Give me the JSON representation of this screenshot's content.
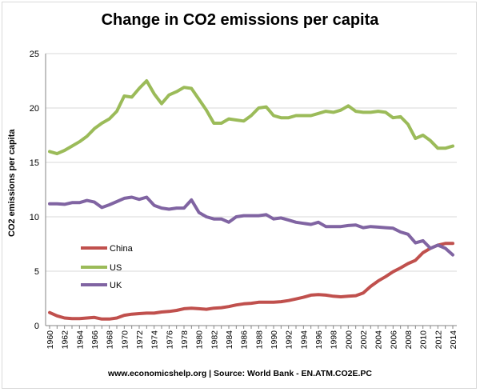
{
  "colors": {
    "China": "#c0504d",
    "US": "#9bbb59",
    "UK": "#8064a2",
    "grid": "#d9d9d9",
    "axis": "#868686"
  },
  "chart_data": {
    "type": "line",
    "title": "Change in CO2 emissions per capita",
    "xlabel": "",
    "ylabel": "CO2 emissions per capita",
    "source": "www.economicshelp.org | Source: World Bank - EN.ATM.CO2E.PC",
    "ylim": [
      0,
      25
    ],
    "yticks": [
      0,
      5,
      10,
      15,
      20,
      25
    ],
    "grid": true,
    "legend_position": "left-middle",
    "x": [
      1960,
      1961,
      1962,
      1963,
      1964,
      1965,
      1966,
      1967,
      1968,
      1969,
      1970,
      1971,
      1972,
      1973,
      1974,
      1975,
      1976,
      1977,
      1978,
      1979,
      1980,
      1981,
      1982,
      1983,
      1984,
      1985,
      1986,
      1987,
      1988,
      1989,
      1990,
      1991,
      1992,
      1993,
      1994,
      1995,
      1996,
      1997,
      1998,
      1999,
      2000,
      2001,
      2002,
      2003,
      2004,
      2005,
      2006,
      2007,
      2008,
      2009,
      2010,
      2011,
      2012,
      2013,
      2014
    ],
    "xticks": [
      "1960",
      "1962",
      "1964",
      "1966",
      "1968",
      "1970",
      "1972",
      "1974",
      "1976",
      "1978",
      "1980",
      "1982",
      "1984",
      "1986",
      "1988",
      "1990",
      "1992",
      "1994",
      "1996",
      "1998",
      "2000",
      "2002",
      "2004",
      "2006",
      "2008",
      "2010",
      "2012",
      "2014"
    ],
    "series": [
      {
        "name": "China",
        "values": [
          1.2,
          0.9,
          0.7,
          0.65,
          0.65,
          0.7,
          0.75,
          0.6,
          0.6,
          0.7,
          0.95,
          1.05,
          1.1,
          1.15,
          1.15,
          1.25,
          1.3,
          1.4,
          1.55,
          1.6,
          1.55,
          1.5,
          1.6,
          1.65,
          1.75,
          1.9,
          2.0,
          2.05,
          2.15,
          2.15,
          2.15,
          2.2,
          2.3,
          2.45,
          2.6,
          2.8,
          2.85,
          2.8,
          2.7,
          2.65,
          2.7,
          2.75,
          3.0,
          3.6,
          4.1,
          4.5,
          4.95,
          5.3,
          5.7,
          6.0,
          6.7,
          7.1,
          7.4,
          7.55,
          7.55
        ]
      },
      {
        "name": "US",
        "values": [
          16.0,
          15.8,
          16.1,
          16.5,
          16.9,
          17.4,
          18.1,
          18.6,
          19.0,
          19.7,
          21.1,
          21.0,
          21.8,
          22.5,
          21.3,
          20.4,
          21.2,
          21.5,
          21.9,
          21.8,
          20.8,
          19.8,
          18.6,
          18.6,
          19.0,
          18.9,
          18.8,
          19.3,
          20.0,
          20.1,
          19.3,
          19.1,
          19.1,
          19.3,
          19.3,
          19.3,
          19.5,
          19.7,
          19.6,
          19.8,
          20.2,
          19.7,
          19.6,
          19.6,
          19.7,
          19.6,
          19.1,
          19.2,
          18.5,
          17.2,
          17.5,
          17.0,
          16.3,
          16.3,
          16.5
        ]
      },
      {
        "name": "UK",
        "values": [
          11.2,
          11.2,
          11.15,
          11.3,
          11.3,
          11.5,
          11.35,
          10.85,
          11.1,
          11.4,
          11.7,
          11.8,
          11.6,
          11.8,
          11.05,
          10.8,
          10.7,
          10.8,
          10.8,
          11.55,
          10.4,
          10.0,
          9.8,
          9.8,
          9.5,
          10.0,
          10.1,
          10.1,
          10.1,
          10.2,
          9.8,
          9.9,
          9.7,
          9.5,
          9.4,
          9.3,
          9.5,
          9.1,
          9.1,
          9.1,
          9.2,
          9.25,
          9.0,
          9.1,
          9.05,
          9.0,
          8.95,
          8.6,
          8.4,
          7.6,
          7.8,
          7.1,
          7.4,
          7.1,
          6.5
        ]
      }
    ]
  }
}
